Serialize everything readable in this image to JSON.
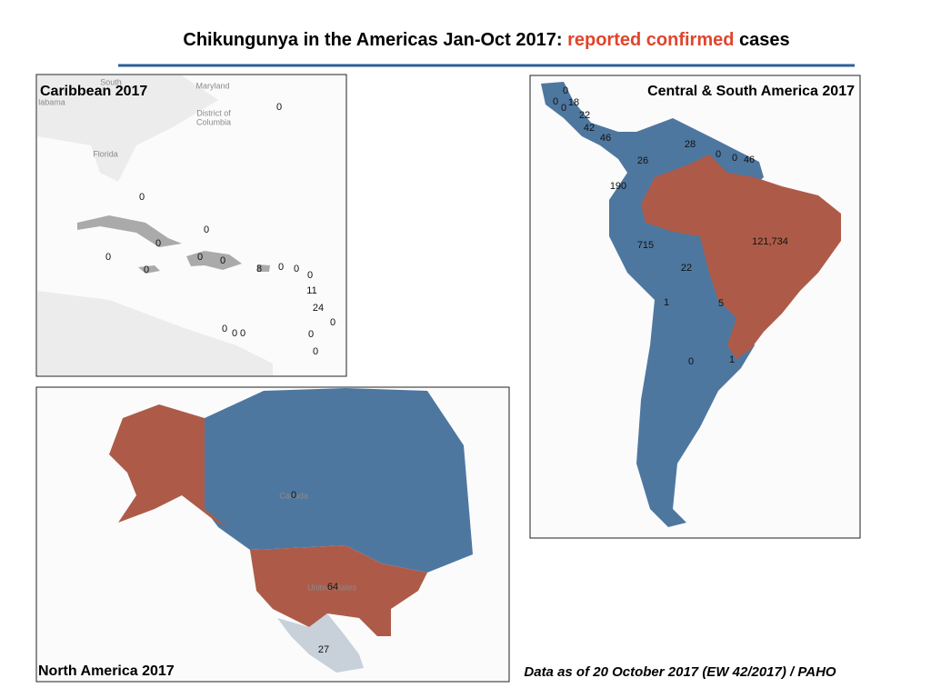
{
  "title": {
    "prefix": "Chikungunya in the Americas Jan-Oct 2017: ",
    "highlight": "reported confirmed",
    "suffix": " cases"
  },
  "panels": [
    {
      "title": "Caribbean 2017",
      "basemap_labels": [
        "South",
        "labama",
        "Maryland",
        "District of",
        "Columbia",
        "Florida"
      ],
      "labels": [
        "0",
        "0",
        "0",
        "0",
        "0",
        "0",
        "0",
        "0",
        "8",
        "0",
        "0",
        "0",
        "11",
        "24",
        "0",
        "0",
        "0",
        "0",
        "0",
        "0"
      ]
    },
    {
      "title": "Central & South America 2017",
      "basemap_labels": [],
      "labels": [
        "0",
        "0",
        "18",
        "0",
        "22",
        "42",
        "46",
        "28",
        "0",
        "0",
        "46",
        "26",
        "190",
        "121,734",
        "715",
        "22",
        "1",
        "5",
        "1",
        "0"
      ]
    },
    {
      "title": "North America 2017",
      "basemap_labels": [
        "Canada",
        "United States"
      ],
      "labels": [
        "0",
        "64",
        "27"
      ]
    }
  ],
  "source": "Data as of 20 October 2017 (EW 42/2017) / PAHO"
}
